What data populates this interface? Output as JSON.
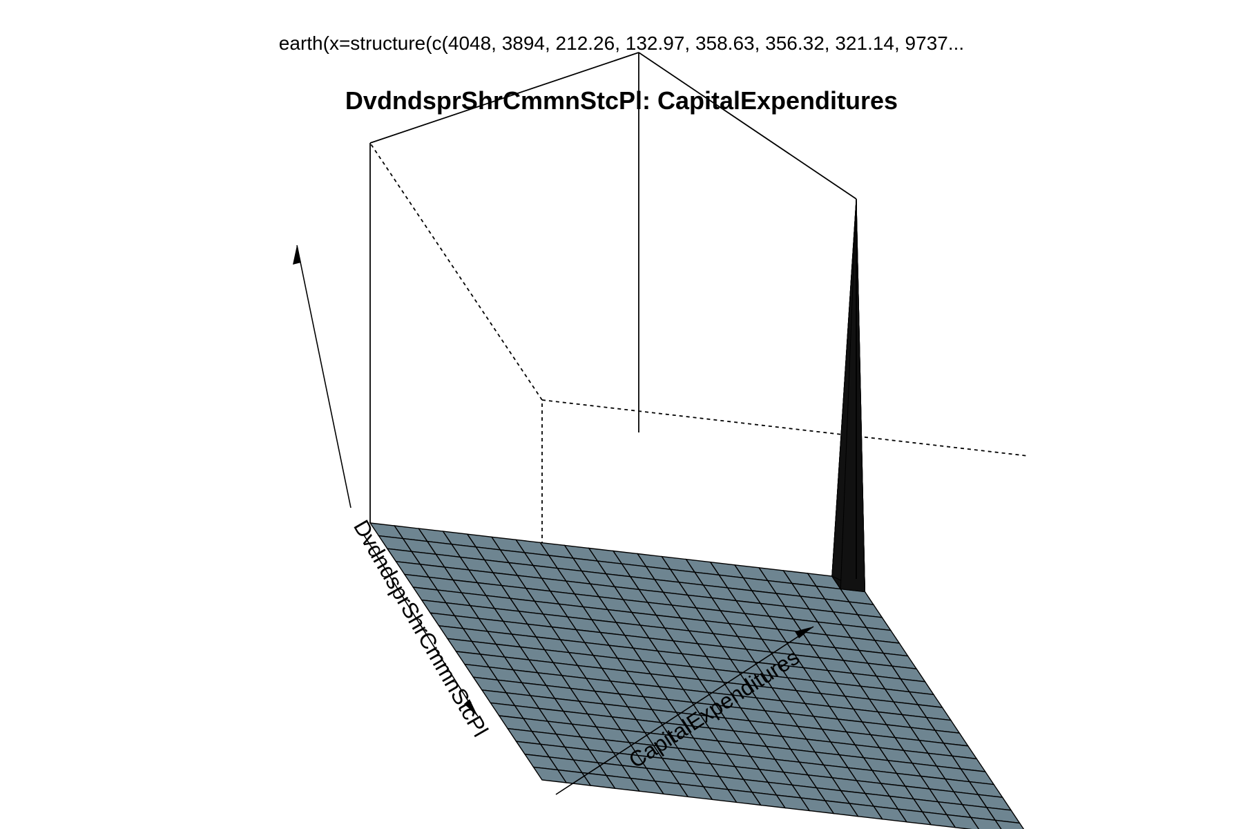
{
  "supertitle": "earth(x=structure(c(4048, 3894, 212.26, 132.97, 358.63, 356.32, 321.14, 9737...",
  "colors": {
    "surface": "#6e8591",
    "peak": "#111111",
    "mesh": "#000000",
    "box": "#000000",
    "background": "#ffffff"
  },
  "chart_data": {
    "type": "surface",
    "title": "DvdndsprShrCmmnStcPl: CapitalExpenditures",
    "xlabel": "CapitalExpenditures",
    "ylabel": "DvdndsprShrCmmnStcPl",
    "zlabel": "",
    "grid_cells": 20,
    "surface_level": 0,
    "peak": {
      "x_cell": 20,
      "y_cell": 0,
      "height": 1
    },
    "note_hidden": "no tick labels are printed on any axis"
  }
}
